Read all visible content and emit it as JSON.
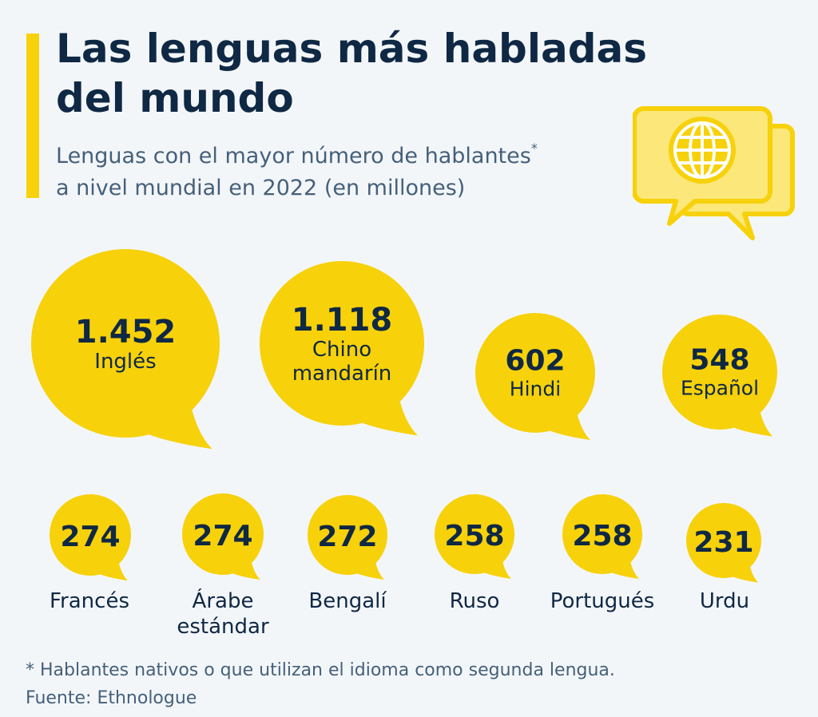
{
  "title": "Las lenguas más habladas del mundo",
  "subtitle": "Lenguas con el mayor número de hablantes",
  "subtitle_marker": "*",
  "subtitle_line2": "a nivel mundial en 2022 (en millones)",
  "footnote": "* Hablantes nativos o que utilizan el idioma como segunda lengua.",
  "source": "Fuente: Ethnologue",
  "icon": "speech-bubble-globe-icon",
  "colors": {
    "bubble": "#f7d10a",
    "icon_fill": "#fbe77a",
    "icon_stroke": "#f7d10a",
    "text": "#0f2844",
    "subtext": "#45607a",
    "background": "#f3f6f9",
    "accent_bar": "#f7d10a"
  },
  "chart_data": {
    "type": "bubble",
    "unit": "millones",
    "items": [
      {
        "language": "Inglés",
        "label_lines": [
          "Inglés"
        ],
        "value": 1452,
        "value_label": "1.452"
      },
      {
        "language": "Chino mandarín",
        "label_lines": [
          "Chino",
          "mandarín"
        ],
        "value": 1118,
        "value_label": "1.118"
      },
      {
        "language": "Hindi",
        "label_lines": [
          "Hindi"
        ],
        "value": 602,
        "value_label": "602"
      },
      {
        "language": "Español",
        "label_lines": [
          "Español"
        ],
        "value": 548,
        "value_label": "548"
      },
      {
        "language": "Francés",
        "label_lines": [
          "Francés"
        ],
        "value": 274,
        "value_label": "274"
      },
      {
        "language": "Árabe estándar",
        "label_lines": [
          "Árabe",
          "estándar"
        ],
        "value": 274,
        "value_label": "274"
      },
      {
        "language": "Bengalí",
        "label_lines": [
          "Bengalí"
        ],
        "value": 272,
        "value_label": "272"
      },
      {
        "language": "Ruso",
        "label_lines": [
          "Ruso"
        ],
        "value": 258,
        "value_label": "258"
      },
      {
        "language": "Portugués",
        "label_lines": [
          "Portugués"
        ],
        "value": 258,
        "value_label": "258"
      },
      {
        "language": "Urdu",
        "label_lines": [
          "Urdu"
        ],
        "value": 231,
        "value_label": "231"
      }
    ]
  }
}
